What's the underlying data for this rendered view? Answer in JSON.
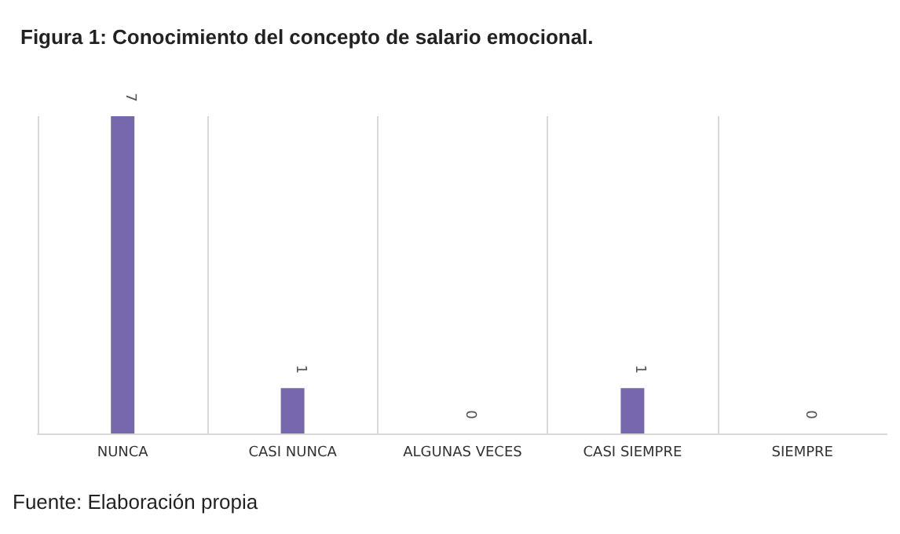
{
  "chart_data": {
    "type": "bar",
    "title": "Figura 1: Conocimiento del concepto de salario emocional.",
    "categories": [
      "NUNCA",
      "CASI NUNCA",
      "ALGUNAS VECES",
      "CASI SIEMPRE",
      "SIEMPRE"
    ],
    "values": [
      7,
      1,
      0,
      1,
      0
    ],
    "color": "#7768ae",
    "data_labels": true,
    "grid": "x",
    "annotations": [
      "Fuente: Elaboración propia"
    ]
  }
}
